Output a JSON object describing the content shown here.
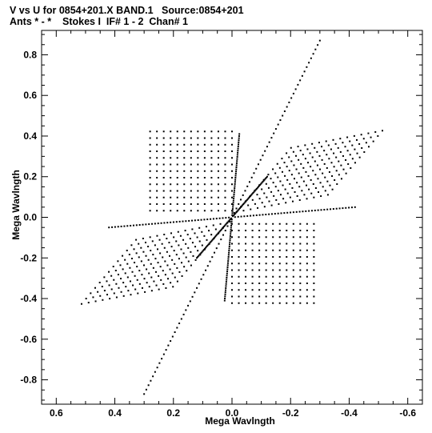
{
  "header": {
    "line1": "V vs U for 0854+201.X BAND.1   Source:0854+201",
    "line2": "Ants * - *    Stokes I  IF# 1 - 2  Chan# 1"
  },
  "chart_data": {
    "type": "scatter",
    "title": "V vs U for 0854+201.X BAND.1   Source:0854+201",
    "subtitle": "Ants * - *    Stokes I  IF# 1 - 2  Chan# 1",
    "xlabel": "Mega Wavlngth",
    "ylabel": "Mega Wavlngth",
    "xlim": [
      0.65,
      -0.65
    ],
    "ylim": [
      -0.92,
      0.92
    ],
    "x_reversed": true,
    "grid": false,
    "x_ticks": [
      0.6,
      0.4,
      0.2,
      0.0,
      -0.2,
      -0.4,
      -0.6
    ],
    "x_tick_labels": [
      "0.6",
      "0.4",
      "0.2",
      "0.0",
      "-0.2",
      "-0.4",
      "-0.6"
    ],
    "y_ticks": [
      0.8,
      0.6,
      0.4,
      0.2,
      0.0,
      -0.2,
      -0.4,
      -0.6,
      -0.8
    ],
    "y_tick_labels": [
      "0.8",
      "0.6",
      "0.4",
      "0.2",
      "0.0",
      "-0.2",
      "-0.4",
      "-0.6",
      "-0.8"
    ],
    "lattices": [
      {
        "name": "upper-skew-grid",
        "origin": [
          0.0,
          0.0
        ],
        "a": [
          -0.024,
          0.0065
        ],
        "b": [
          -0.0155,
          0.0263
        ],
        "i": [
          0,
          13
        ],
        "j": [
          0,
          13
        ],
        "skip_j0": true
      },
      {
        "name": "lower-skew-grid",
        "origin": [
          0.0,
          0.0
        ],
        "a": [
          0.024,
          -0.0065
        ],
        "b": [
          0.0155,
          -0.0263
        ],
        "i": [
          0,
          13
        ],
        "j": [
          0,
          13
        ],
        "skip_j0": true
      },
      {
        "name": "upper-left-square-grid",
        "origin": [
          0.0,
          0.0
        ],
        "a": [
          0.0233,
          0.0
        ],
        "b": [
          0.0,
          0.0325
        ],
        "i": [
          0,
          12
        ],
        "j": [
          1,
          13
        ]
      },
      {
        "name": "lower-right-square-grid",
        "origin": [
          0.0,
          0.0
        ],
        "a": [
          -0.0233,
          0.0
        ],
        "b": [
          0.0,
          -0.0325
        ],
        "i": [
          0,
          12
        ],
        "j": [
          1,
          13
        ]
      }
    ],
    "point_count_note": "dense U-V coverage, point symmetric about origin"
  }
}
